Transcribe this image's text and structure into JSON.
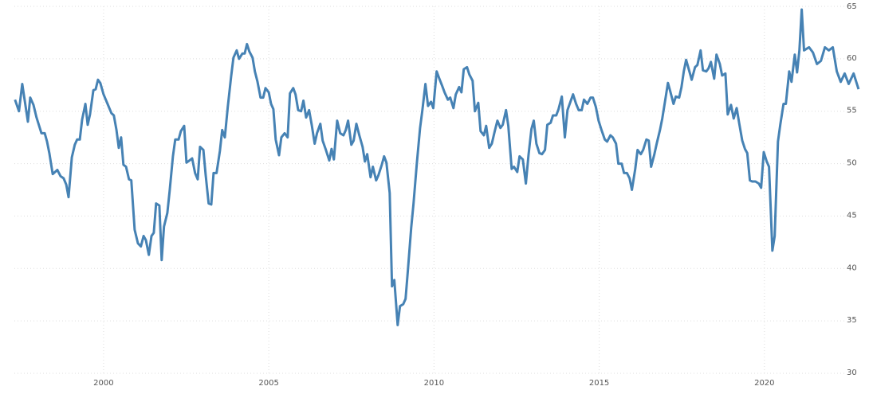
{
  "chart_data": {
    "type": "line",
    "color": "#4682b4",
    "grid": true,
    "xlim": [
      1997.3,
      2022.9
    ],
    "xticks": [
      2000,
      2005,
      2010,
      2015,
      2020
    ],
    "ylim": [
      30,
      65
    ],
    "yticks": [
      30,
      35,
      40,
      45,
      50,
      55,
      60,
      65
    ],
    "x": [
      1997.32,
      1997.44,
      1997.54,
      1997.71,
      1997.78,
      1997.88,
      1997.97,
      1998.12,
      1998.22,
      1998.29,
      1998.36,
      1998.46,
      1998.6,
      1998.7,
      1998.79,
      1998.87,
      1998.94,
      1999.04,
      1999.13,
      1999.2,
      1999.28,
      1999.35,
      1999.45,
      1999.52,
      1999.59,
      1999.69,
      1999.76,
      1999.83,
      1999.9,
      2000.0,
      2000.12,
      2000.24,
      2000.31,
      2000.39,
      2000.46,
      2000.53,
      2000.6,
      2000.68,
      2000.77,
      2000.84,
      2000.94,
      2001.04,
      2001.13,
      2001.21,
      2001.28,
      2001.37,
      2001.45,
      2001.52,
      2001.59,
      2001.69,
      2001.76,
      2001.83,
      2001.93,
      2002.0,
      2002.1,
      2002.17,
      2002.27,
      2002.34,
      2002.44,
      2002.51,
      2002.6,
      2002.68,
      2002.77,
      2002.85,
      2002.92,
      2003.02,
      2003.09,
      2003.18,
      2003.26,
      2003.33,
      2003.42,
      2003.52,
      2003.59,
      2003.67,
      2003.76,
      2003.86,
      2003.93,
      2004.03,
      2004.1,
      2004.2,
      2004.27,
      2004.34,
      2004.41,
      2004.51,
      2004.58,
      2004.66,
      2004.75,
      2004.83,
      2004.9,
      2005.0,
      2005.07,
      2005.14,
      2005.21,
      2005.31,
      2005.38,
      2005.48,
      2005.57,
      2005.64,
      2005.74,
      2005.81,
      2005.89,
      2005.98,
      2006.05,
      2006.13,
      2006.22,
      2006.3,
      2006.39,
      2006.46,
      2006.56,
      2006.63,
      2006.73,
      2006.83,
      2006.9,
      2006.97,
      2007.07,
      2007.16,
      2007.26,
      2007.33,
      2007.4,
      2007.5,
      2007.57,
      2007.65,
      2007.74,
      2007.84,
      2007.91,
      2007.98,
      2008.08,
      2008.15,
      2008.25,
      2008.32,
      2008.42,
      2008.49,
      2008.56,
      2008.66,
      2008.73,
      2008.8,
      2008.9,
      2008.97,
      2009.07,
      2009.14,
      2009.21,
      2009.31,
      2009.38,
      2009.48,
      2009.58,
      2009.65,
      2009.74,
      2009.82,
      2009.91,
      2009.98,
      2010.08,
      2010.15,
      2010.25,
      2010.32,
      2010.42,
      2010.49,
      2010.59,
      2010.66,
      2010.76,
      2010.83,
      2010.9,
      2011.0,
      2011.07,
      2011.17,
      2011.24,
      2011.34,
      2011.41,
      2011.51,
      2011.58,
      2011.67,
      2011.75,
      2011.84,
      2011.92,
      2012.01,
      2012.08,
      2012.18,
      2012.25,
      2012.35,
      2012.42,
      2012.52,
      2012.59,
      2012.69,
      2012.78,
      2012.86,
      2012.95,
      2013.02,
      2013.1,
      2013.19,
      2013.27,
      2013.36,
      2013.43,
      2013.53,
      2013.6,
      2013.7,
      2013.77,
      2013.87,
      2013.96,
      2014.04,
      2014.13,
      2014.21,
      2014.3,
      2014.38,
      2014.47,
      2014.54,
      2014.64,
      2014.74,
      2014.81,
      2014.9,
      2014.98,
      2015.07,
      2015.17,
      2015.24,
      2015.34,
      2015.41,
      2015.51,
      2015.58,
      2015.68,
      2015.75,
      2015.84,
      2015.92,
      2015.99,
      2016.09,
      2016.16,
      2016.26,
      2016.33,
      2016.43,
      2016.5,
      2016.57,
      2016.67,
      2016.74,
      2016.84,
      2016.91,
      2017.0,
      2017.08,
      2017.15,
      2017.25,
      2017.32,
      2017.42,
      2017.49,
      2017.56,
      2017.63,
      2017.73,
      2017.8,
      2017.9,
      2017.97,
      2018.07,
      2018.14,
      2018.24,
      2018.31,
      2018.38,
      2018.48,
      2018.55,
      2018.65,
      2018.72,
      2018.82,
      2018.89,
      2018.99,
      2019.07,
      2019.16,
      2019.24,
      2019.33,
      2019.41,
      2019.48,
      2019.56,
      2019.63,
      2019.73,
      2019.83,
      2019.9,
      2019.98,
      2020.07,
      2020.14,
      2020.24,
      2020.31,
      2020.41,
      2020.48,
      2020.58,
      2020.65,
      2020.75,
      2020.82,
      2020.92,
      2020.99,
      2021.06,
      2021.13,
      2021.2,
      2021.35,
      2021.47,
      2021.59,
      2021.71,
      2021.83,
      2021.95,
      2022.07,
      2022.19,
      2022.31,
      2022.43,
      2022.55,
      2022.7,
      2022.85
    ],
    "values": [
      56.1,
      55.0,
      57.6,
      54.0,
      56.3,
      55.6,
      54.4,
      52.9,
      52.9,
      52.1,
      51.0,
      49.0,
      49.4,
      48.8,
      48.6,
      48.0,
      46.8,
      50.6,
      51.8,
      52.3,
      52.3,
      54.2,
      55.7,
      53.7,
      54.7,
      57.0,
      57.1,
      58.0,
      57.7,
      56.6,
      55.7,
      54.8,
      54.6,
      53.2,
      51.5,
      52.5,
      49.9,
      49.7,
      48.5,
      48.4,
      43.7,
      42.4,
      42.1,
      43.1,
      42.7,
      41.3,
      43.1,
      43.4,
      46.2,
      46.0,
      40.8,
      44.0,
      45.3,
      47.4,
      50.7,
      52.3,
      52.3,
      53.1,
      53.6,
      50.1,
      50.3,
      50.5,
      49.1,
      48.5,
      51.6,
      51.3,
      48.9,
      46.2,
      46.1,
      49.1,
      49.1,
      51.2,
      53.2,
      52.5,
      55.4,
      58.3,
      60.1,
      60.8,
      60.0,
      60.5,
      60.5,
      61.4,
      60.7,
      60.1,
      58.8,
      57.8,
      56.3,
      56.3,
      57.2,
      56.8,
      55.7,
      55.2,
      52.3,
      50.8,
      52.5,
      52.9,
      52.5,
      56.7,
      57.2,
      56.6,
      55.1,
      55.0,
      56.0,
      54.4,
      55.1,
      53.7,
      51.9,
      52.9,
      53.8,
      52.2,
      51.3,
      50.3,
      51.4,
      50.4,
      54.1,
      52.9,
      52.7,
      53.2,
      54.1,
      51.8,
      52.2,
      53.8,
      52.7,
      51.6,
      50.2,
      50.9,
      48.7,
      49.7,
      48.4,
      48.9,
      49.9,
      50.7,
      50.1,
      47.2,
      38.3,
      38.9,
      34.6,
      36.4,
      36.6,
      37.1,
      39.8,
      43.9,
      46.2,
      50.0,
      53.4,
      55.1,
      57.6,
      55.5,
      55.9,
      55.3,
      58.8,
      58.2,
      57.4,
      56.8,
      56.1,
      56.3,
      55.3,
      56.6,
      57.3,
      56.8,
      59.0,
      59.2,
      58.5,
      57.9,
      55.0,
      55.8,
      53.1,
      52.7,
      53.6,
      51.5,
      51.9,
      53.1,
      54.1,
      53.4,
      53.7,
      55.1,
      53.6,
      49.5,
      49.7,
      49.2,
      50.7,
      50.4,
      48.1,
      50.8,
      53.3,
      54.1,
      51.9,
      51.0,
      50.9,
      51.3,
      53.7,
      53.9,
      54.6,
      54.6,
      55.2,
      56.4,
      52.5,
      55.1,
      55.9,
      56.6,
      55.7,
      55.1,
      55.1,
      56.1,
      55.7,
      56.3,
      56.3,
      55.4,
      54.1,
      53.2,
      52.3,
      52.1,
      52.7,
      52.5,
      51.9,
      50.0,
      50.0,
      49.1,
      49.1,
      48.6,
      47.5,
      49.5,
      51.3,
      50.9,
      51.3,
      52.3,
      52.2,
      49.7,
      50.9,
      51.9,
      53.2,
      54.3,
      56.1,
      57.7,
      56.9,
      55.7,
      56.4,
      56.3,
      57.3,
      58.8,
      59.9,
      58.8,
      58.0,
      59.2,
      59.4,
      60.8,
      58.9,
      58.8,
      59.1,
      59.7,
      58.1,
      60.4,
      59.5,
      58.4,
      58.6,
      54.7,
      55.6,
      54.3,
      55.3,
      53.8,
      52.2,
      51.4,
      51.0,
      48.4,
      48.3,
      48.3,
      48.1,
      47.7,
      51.1,
      50.2,
      49.7,
      41.7,
      43.1,
      52.1,
      53.7,
      55.7,
      55.7,
      58.8,
      57.8,
      60.4,
      58.7,
      60.8,
      64.7,
      60.8,
      61.1,
      60.6,
      59.5,
      59.8,
      61.1,
      60.8,
      61.1,
      58.8,
      57.8,
      58.6,
      57.6,
      58.6,
      57.1
    ]
  }
}
